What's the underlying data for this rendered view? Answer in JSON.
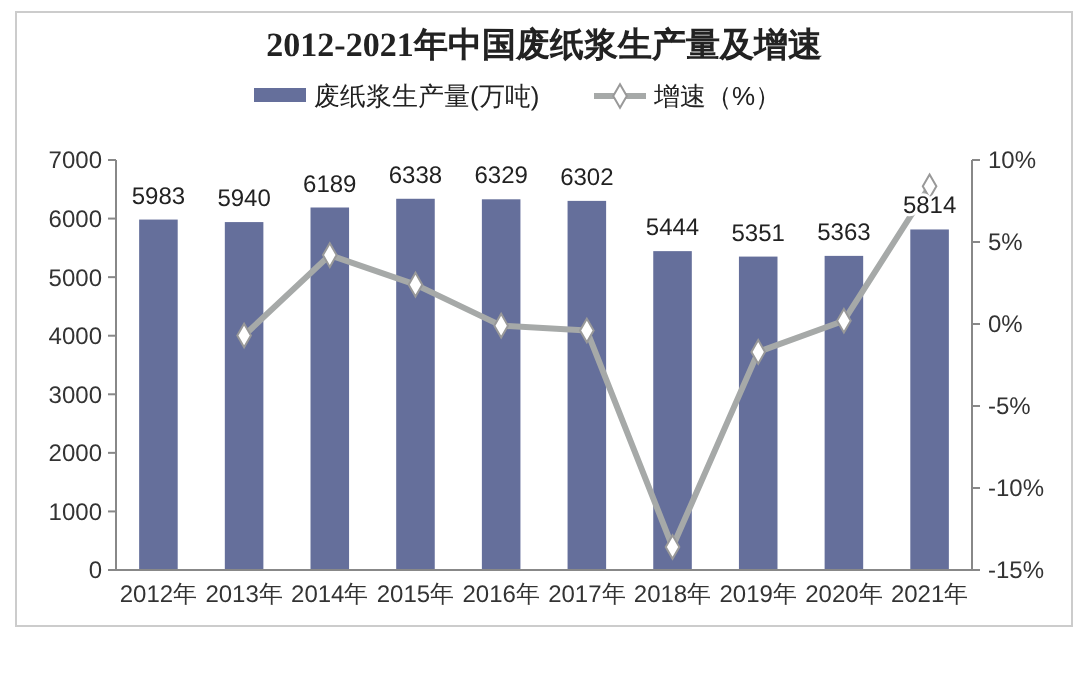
{
  "chart_data": {
    "type": "bar",
    "title": "2012-2021年中国废纸浆生产量及增速",
    "categories": [
      "2012年",
      "2013年",
      "2014年",
      "2015年",
      "2016年",
      "2017年",
      "2018年",
      "2019年",
      "2020年",
      "2021年"
    ],
    "series": [
      {
        "name": "废纸浆生产量(万吨)",
        "color": "#656f9b",
        "values": [
          5983,
          5940,
          6189,
          6338,
          6329,
          6302,
          5444,
          5351,
          5363,
          5814
        ],
        "value_labels": [
          "5983",
          "5940",
          "6189",
          "6338",
          "6329",
          "6302",
          "5444",
          "5351",
          "5363",
          "5814"
        ]
      },
      {
        "name": "增速（%）",
        "type": "line",
        "axis": "y2",
        "color": "#a6a9a8",
        "marker": "diamond",
        "values": [
          null,
          -0.7,
          4.2,
          2.4,
          -0.1,
          -0.4,
          -13.6,
          -1.7,
          0.2,
          8.4
        ]
      }
    ],
    "ylim": [
      0,
      7000
    ],
    "yticks": [
      0,
      1000,
      2000,
      3000,
      4000,
      5000,
      6000,
      7000
    ],
    "y2lim": [
      -15,
      10
    ],
    "y2ticks": [
      {
        "value": -15,
        "label": "-15%"
      },
      {
        "value": -10,
        "label": "-10%"
      },
      {
        "value": -5,
        "label": "-5%"
      },
      {
        "value": 0,
        "label": "0%"
      },
      {
        "value": 5,
        "label": "5%"
      },
      {
        "value": 10,
        "label": "10%"
      }
    ],
    "legend": "top",
    "grid": false
  }
}
